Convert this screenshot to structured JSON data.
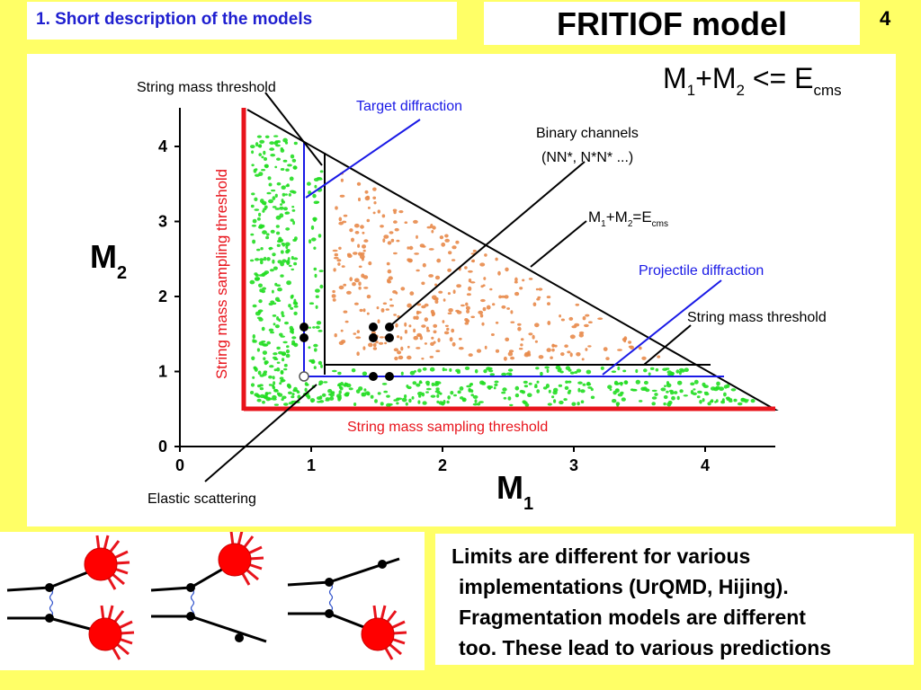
{
  "header": {
    "section": "1. Short description of the models",
    "title": "FRITIOF model",
    "page_number": "4"
  },
  "plot": {
    "axis_x_label": "M",
    "axis_x_sub": "1",
    "axis_y_label": "M",
    "axis_y_sub": "2",
    "x_ticks": [
      "0",
      "1",
      "2",
      "3",
      "4"
    ],
    "y_ticks": [
      "0",
      "1",
      "2",
      "3",
      "4"
    ],
    "constraint": {
      "lhs": "M",
      "s1": "1",
      "plus": "+M",
      "s2": "2",
      "op": " <= E",
      "s3": "cms"
    },
    "labels": {
      "string_mass_threshold_top": "String mass threshold",
      "target_diffraction": "Target diffraction",
      "binary_channels_1": "Binary channels",
      "binary_channels_2": "(NN*, N*N* ...)",
      "line_eq": {
        "m": "M",
        "s1": "1",
        "p": "+M",
        "s2": "2",
        "eq": "=E",
        "s3": "cms"
      },
      "projectile_diffraction": "Projectile diffraction",
      "string_mass_threshold_right": "String mass threshold",
      "sampling_threshold_vertical": "String mass sampling threshold",
      "sampling_threshold_horizontal": "String mass sampling threshold",
      "elastic_scattering": "Elastic scattering"
    },
    "colors": {
      "triangle": "#000000",
      "sampling_threshold": "#e8141c",
      "diffraction": "#1a1ae6",
      "green_dots": "#22dd22",
      "orange_dots": "#e88a4a"
    }
  },
  "text": {
    "lines": [
      "Limits are different for various",
      "implementations (UrQMD, Hijing).",
      "Fragmentation models are different",
      "too. These lead to various predictions"
    ]
  }
}
